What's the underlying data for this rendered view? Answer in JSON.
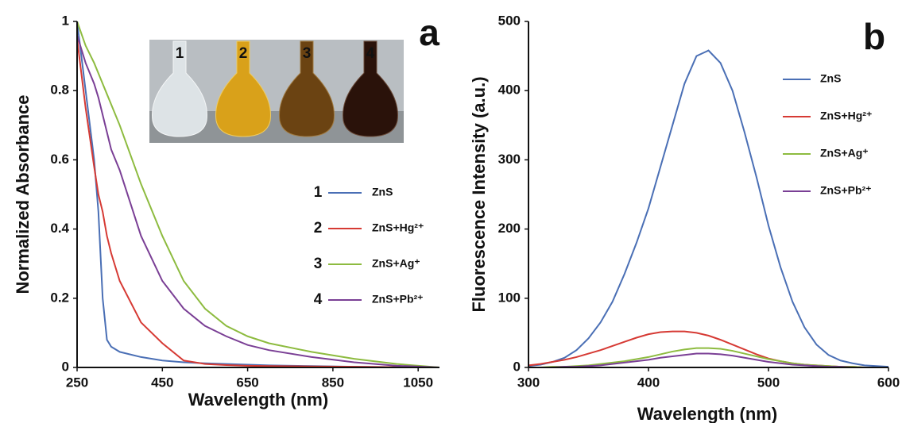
{
  "chart_data": [
    {
      "type": "line",
      "panel_label": "a",
      "x_label": "Wavelength (nm)",
      "y_label": "Normalized Absorbance",
      "x": [
        250,
        270,
        290,
        300,
        310,
        320,
        330,
        350,
        400,
        450,
        500,
        550,
        600,
        650,
        700,
        800,
        900,
        1000,
        1100
      ],
      "xlim": [
        250,
        1100
      ],
      "xticks": [
        250,
        450,
        650,
        850,
        1050
      ],
      "ylim": [
        0,
        1
      ],
      "yticks": [
        0,
        0.2,
        0.4,
        0.6,
        0.8,
        1
      ],
      "series": [
        {
          "label": "1",
          "name": "ZnS",
          "color": "#4a6fb5",
          "values": [
            1,
            0.8,
            0.6,
            0.45,
            0.2,
            0.08,
            0.06,
            0.045,
            0.03,
            0.02,
            0.015,
            0.012,
            0.01,
            0.008,
            0.006,
            0.004,
            0.002,
            0.001,
            0
          ]
        },
        {
          "label": "2",
          "name": "ZnS+Hg²⁺",
          "color": "#d63a34",
          "values": [
            0.95,
            0.75,
            0.58,
            0.5,
            0.45,
            0.38,
            0.33,
            0.25,
            0.13,
            0.07,
            0.02,
            0.01,
            0.007,
            0.005,
            0.004,
            0.003,
            0.002,
            0.001,
            0
          ]
        },
        {
          "label": "3",
          "name": "ZnS+Ag⁺",
          "color": "#8dbb3f",
          "values": [
            1,
            0.93,
            0.88,
            0.85,
            0.82,
            0.79,
            0.76,
            0.7,
            0.53,
            0.38,
            0.25,
            0.17,
            0.12,
            0.09,
            0.07,
            0.045,
            0.025,
            0.01,
            0
          ]
        },
        {
          "label": "4",
          "name": "ZnS+Pb²⁺",
          "color": "#7a3f95",
          "values": [
            0.96,
            0.88,
            0.82,
            0.78,
            0.73,
            0.68,
            0.63,
            0.57,
            0.38,
            0.25,
            0.17,
            0.12,
            0.09,
            0.065,
            0.05,
            0.03,
            0.015,
            0.005,
            0
          ]
        }
      ]
    },
    {
      "type": "line",
      "panel_label": "b",
      "x_label": "Wavelength (nm)",
      "y_label": "Fluorescence Intensity (a.u.)",
      "x": [
        300,
        310,
        320,
        330,
        340,
        350,
        360,
        370,
        380,
        390,
        400,
        410,
        420,
        430,
        440,
        450,
        460,
        470,
        480,
        490,
        500,
        510,
        520,
        530,
        540,
        550,
        560,
        570,
        580,
        590,
        600
      ],
      "xlim": [
        300,
        600
      ],
      "xticks": [
        300,
        400,
        500,
        600
      ],
      "ylim": [
        0,
        500
      ],
      "yticks": [
        0,
        100,
        200,
        300,
        400,
        500
      ],
      "series": [
        {
          "name": "ZnS",
          "color": "#4a6fb5",
          "values": [
            2,
            4,
            8,
            14,
            25,
            42,
            65,
            95,
            135,
            180,
            230,
            290,
            350,
            410,
            450,
            458,
            440,
            400,
            340,
            275,
            205,
            145,
            95,
            58,
            33,
            18,
            10,
            6,
            3,
            2,
            1
          ]
        },
        {
          "name": "ZnS+Hg²⁺",
          "color": "#d63a34",
          "values": [
            3,
            5,
            8,
            11,
            15,
            20,
            25,
            31,
            37,
            43,
            48,
            51,
            52,
            52,
            50,
            46,
            40,
            33,
            26,
            19,
            13,
            9,
            6,
            4,
            3,
            2,
            1,
            1,
            0,
            0,
            0
          ]
        },
        {
          "name": "ZnS+Ag⁺",
          "color": "#8dbb3f",
          "values": [
            0,
            0,
            1,
            1,
            2,
            3,
            5,
            7,
            9,
            12,
            15,
            19,
            23,
            26,
            28,
            28,
            27,
            24,
            20,
            16,
            12,
            9,
            6,
            4,
            3,
            2,
            1,
            1,
            0,
            0,
            0
          ]
        },
        {
          "name": "ZnS+Pb²⁺",
          "color": "#7a3f95",
          "values": [
            0,
            0,
            0,
            1,
            1,
            2,
            3,
            5,
            7,
            9,
            11,
            14,
            16,
            18,
            20,
            20,
            19,
            17,
            14,
            11,
            8,
            6,
            4,
            3,
            2,
            1,
            1,
            0,
            0,
            0,
            0
          ]
        }
      ]
    }
  ]
}
